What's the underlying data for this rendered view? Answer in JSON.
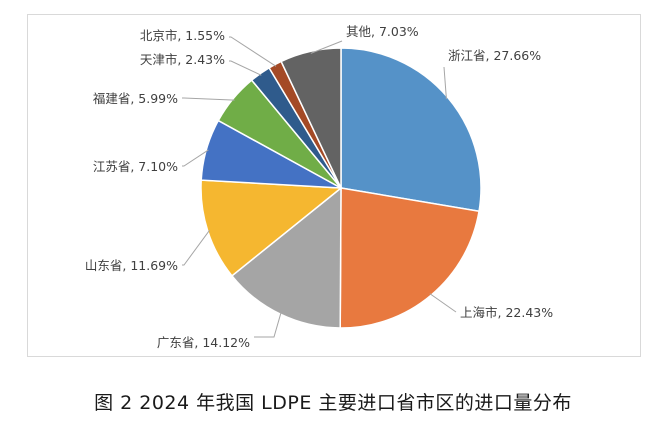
{
  "caption": "图 2 2024 年我国 LDPE 主要进口省市区的进口量分布",
  "chart_data": {
    "type": "pie",
    "title": "",
    "slices": [
      {
        "name": "浙江省",
        "value": 27.66,
        "label": "浙江省, 27.66%",
        "color": "#5592c8"
      },
      {
        "name": "上海市",
        "value": 22.43,
        "label": "上海市, 22.43%",
        "color": "#e8793f"
      },
      {
        "name": "广东省",
        "value": 14.12,
        "label": "广东省, 14.12%",
        "color": "#a5a5a5"
      },
      {
        "name": "山东省",
        "value": 11.69,
        "label": "山东省, 11.69%",
        "color": "#f5b730"
      },
      {
        "name": "江苏省",
        "value": 7.1,
        "label": "江苏省, 7.10%",
        "color": "#4472c4"
      },
      {
        "name": "福建省",
        "value": 5.99,
        "label": "福建省, 5.99%",
        "color": "#70ad47"
      },
      {
        "name": "天津市",
        "value": 2.43,
        "label": "天津市, 2.43%",
        "color": "#2f5b8c"
      },
      {
        "name": "北京市",
        "value": 1.55,
        "label": "北京市, 1.55%",
        "color": "#a44a26"
      },
      {
        "name": "其他",
        "value": 7.03,
        "label": "其他, 7.03%",
        "color": "#636363"
      }
    ],
    "start_angle": "12 o'clock",
    "direction": "clockwise",
    "legend": "none"
  }
}
